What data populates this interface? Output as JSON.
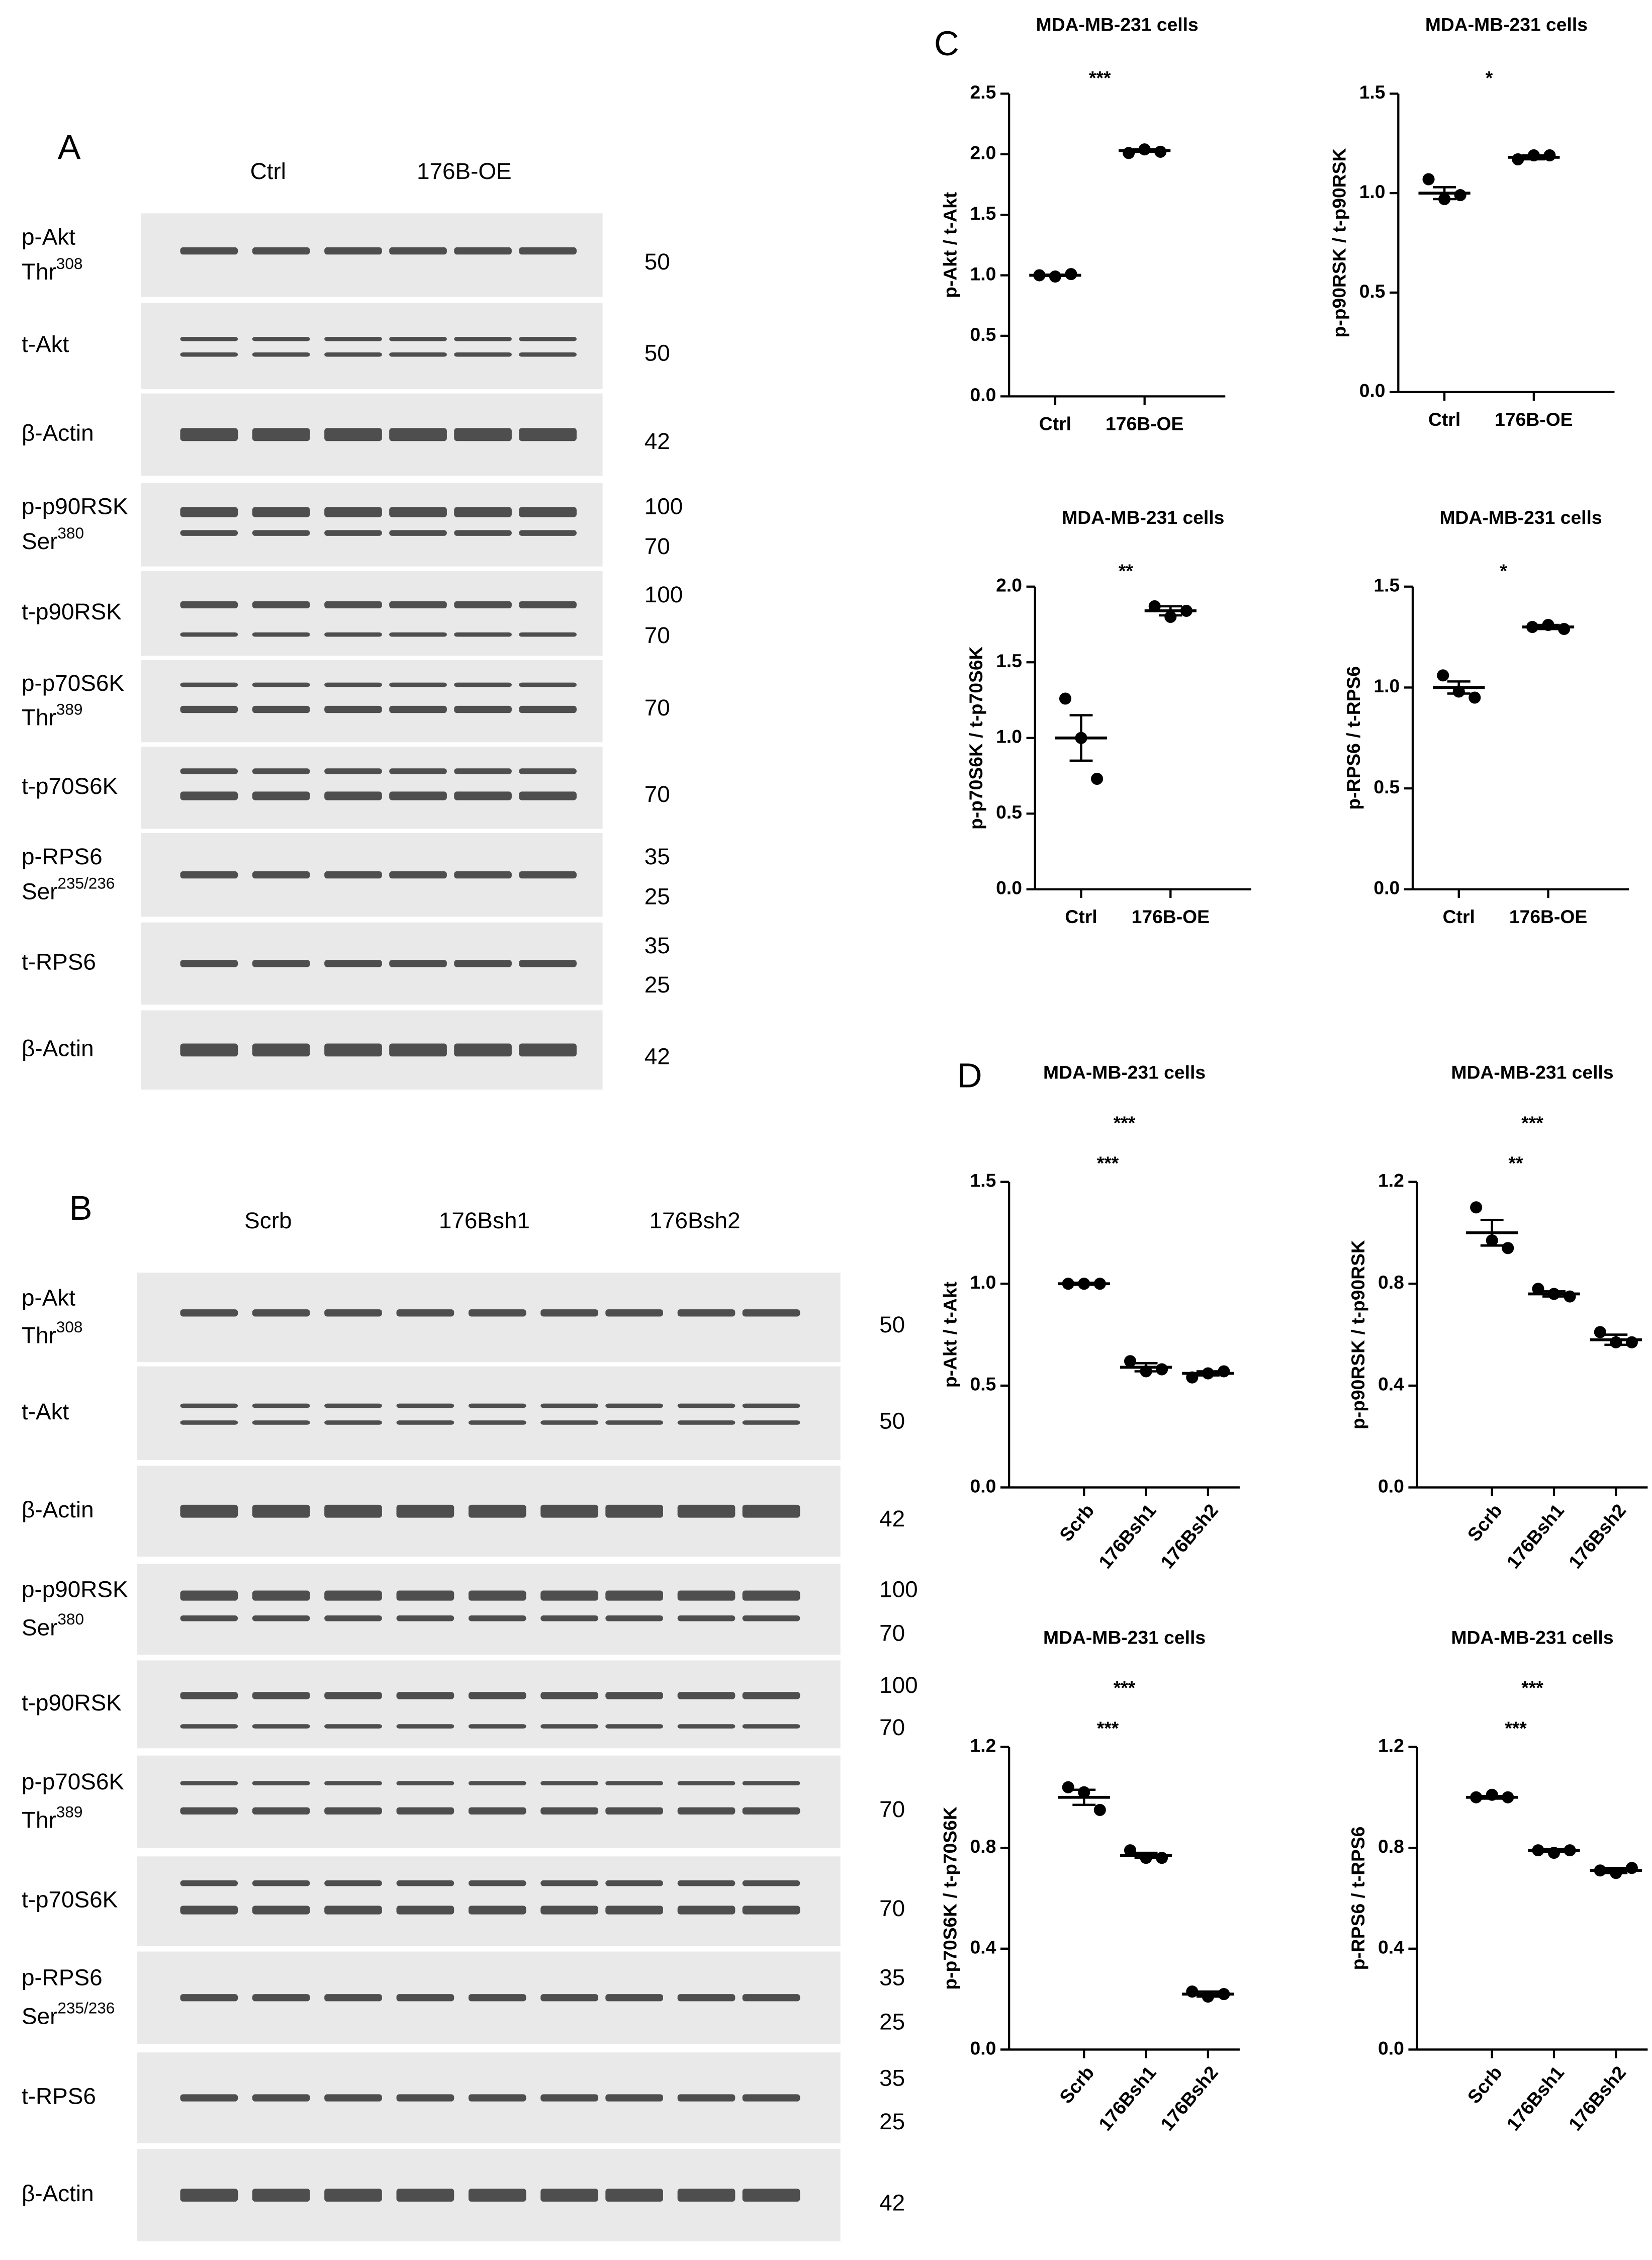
{
  "figure": {
    "panels": [
      "A",
      "B",
      "C",
      "D"
    ]
  },
  "blots": [
    {
      "groups": [
        "Ctrl",
        "176B-OE"
      ],
      "rows": [
        {
          "label": "p-Akt",
          "site": "Thr",
          "site_sup": "308",
          "mw": [
            50
          ]
        },
        {
          "label": "t-Akt",
          "mw": [
            50
          ]
        },
        {
          "label": "β-Actin",
          "mw": [
            42
          ]
        },
        {
          "label": "p-p90RSK",
          "site": "Ser",
          "site_sup": "380",
          "mw": [
            100,
            70
          ]
        },
        {
          "label": "t-p90RSK",
          "mw": [
            100,
            70
          ]
        },
        {
          "label": "p-p70S6K",
          "site": "Thr",
          "site_sup": "389",
          "mw": [
            70
          ]
        },
        {
          "label": "t-p70S6K",
          "mw": [
            70
          ]
        },
        {
          "label": "p-RPS6",
          "site": "Ser",
          "site_sup": "235/236",
          "mw": [
            35,
            25
          ]
        },
        {
          "label": "t-RPS6",
          "mw": [
            35,
            25
          ]
        },
        {
          "label": "β-Actin",
          "mw": [
            42
          ]
        }
      ]
    },
    {
      "groups": [
        "Scrb",
        "176Bsh1",
        "176Bsh2"
      ],
      "rows": [
        {
          "label": "p-Akt",
          "site": "Thr",
          "site_sup": "308",
          "mw": [
            50
          ]
        },
        {
          "label": "t-Akt",
          "mw": [
            50
          ]
        },
        {
          "label": "β-Actin",
          "mw": [
            42
          ]
        },
        {
          "label": "p-p90RSK",
          "site": "Ser",
          "site_sup": "380",
          "mw": [
            100,
            70
          ]
        },
        {
          "label": "t-p90RSK",
          "mw": [
            100,
            70
          ]
        },
        {
          "label": "p-p70S6K",
          "site": "Thr",
          "site_sup": "389",
          "mw": [
            70
          ]
        },
        {
          "label": "t-p70S6K",
          "mw": [
            70
          ]
        },
        {
          "label": "p-RPS6",
          "site": "Ser",
          "site_sup": "235/236",
          "mw": [
            35,
            25
          ]
        },
        {
          "label": "t-RPS6",
          "mw": [
            35,
            25
          ]
        },
        {
          "label": "β-Actin",
          "mw": [
            42
          ]
        }
      ]
    }
  ],
  "chart_data": [
    {
      "type": "dot",
      "title": "MDA-MB-231 cells",
      "ylabel": "p-Akt / t-Akt",
      "categories": [
        "Ctrl",
        "176B-OE"
      ],
      "ylim": [
        0,
        2.5
      ],
      "yticks": [
        {
          "value": 0,
          "label": "0.0"
        },
        0.5,
        {
          "value": 1,
          "label": "1.0"
        },
        1.5,
        {
          "value": 2,
          "label": "2.0"
        },
        2.5
      ],
      "points": [
        [
          1.0,
          0.99,
          1.01
        ],
        [
          2.01,
          2.04,
          2.02
        ]
      ],
      "means": [
        1.0,
        2.03
      ],
      "sems": [
        0.005,
        0.01
      ],
      "annotations": [
        "***"
      ],
      "color": "#000000"
    },
    {
      "type": "dot",
      "title": "MDA-MB-231 cells",
      "ylabel": "p-p90RSK / t-p90RSK",
      "categories": [
        "Ctrl",
        "176B-OE"
      ],
      "ylim": [
        0,
        1.5
      ],
      "yticks": [
        {
          "value": 0,
          "label": "0.0"
        },
        0.5,
        {
          "value": 1,
          "label": "1.0"
        },
        1.5
      ],
      "points": [
        [
          1.07,
          0.97,
          0.99
        ],
        [
          1.17,
          1.19,
          1.19
        ]
      ],
      "means": [
        1.0,
        1.18
      ],
      "sems": [
        0.03,
        0.01
      ],
      "annotations": [
        "*"
      ],
      "color": "#000000"
    },
    {
      "type": "dot",
      "title": "MDA-MB-231 cells",
      "ylabel": "p-p70S6K / t-p70S6K",
      "categories": [
        "Ctrl",
        "176B-OE"
      ],
      "ylim": [
        0,
        2
      ],
      "yticks": [
        {
          "value": 0,
          "label": "0.0"
        },
        0.5,
        {
          "value": 1,
          "label": "1.0"
        },
        1.5,
        {
          "value": 2,
          "label": "2.0"
        }
      ],
      "points": [
        [
          1.26,
          1.0,
          0.73
        ],
        [
          1.87,
          1.8,
          1.84
        ]
      ],
      "means": [
        1.0,
        1.84
      ],
      "sems": [
        0.15,
        0.03
      ],
      "annotations": [
        "**"
      ],
      "color": "#000000"
    },
    {
      "type": "dot",
      "title": "MDA-MB-231 cells",
      "ylabel": "p-RPS6 / t-RPS6",
      "categories": [
        "Ctrl",
        "176B-OE"
      ],
      "ylim": [
        0,
        1.5
      ],
      "yticks": [
        {
          "value": 0,
          "label": "0.0"
        },
        0.5,
        {
          "value": 1,
          "label": "1.0"
        },
        1.5
      ],
      "points": [
        [
          1.06,
          0.98,
          0.95
        ],
        [
          1.3,
          1.31,
          1.29
        ]
      ],
      "means": [
        1.0,
        1.3
      ],
      "sems": [
        0.03,
        0.01
      ],
      "annotations": [
        "*"
      ],
      "color": "#000000"
    },
    {
      "type": "dot",
      "title": "MDA-MB-231 cells",
      "ylabel": "p-Akt / t-Akt",
      "categories": [
        "Scrb",
        "176Bsh1",
        "176Bsh2"
      ],
      "ylim": [
        0,
        1.5
      ],
      "yticks": [
        {
          "value": 0,
          "label": "0.0"
        },
        0.5,
        {
          "value": 1,
          "label": "1.0"
        },
        1.5
      ],
      "points": [
        [
          1.0,
          1.0,
          1.0
        ],
        [
          0.62,
          0.57,
          0.58
        ],
        [
          0.54,
          0.56,
          0.57
        ]
      ],
      "means": [
        1.0,
        0.59,
        0.56
      ],
      "sems": [
        0.005,
        0.02,
        0.01
      ],
      "annotations": [
        "***",
        "***"
      ],
      "color": "#000000"
    },
    {
      "type": "dot",
      "title": "MDA-MB-231 cells",
      "ylabel": "p-p90RSK / t-p90RSK",
      "categories": [
        "Scrb",
        "176Bsh1",
        "176Bsh2"
      ],
      "ylim": [
        0,
        1.2
      ],
      "yticks": [
        {
          "value": 0,
          "label": "0.0"
        },
        0.4,
        0.8,
        1.2
      ],
      "points": [
        [
          1.1,
          0.97,
          0.94
        ],
        [
          0.78,
          0.76,
          0.75
        ],
        [
          0.61,
          0.57,
          0.57
        ]
      ],
      "means": [
        1.0,
        0.76,
        0.58
      ],
      "sems": [
        0.05,
        0.01,
        0.02
      ],
      "annotations": [
        "***",
        "**"
      ],
      "color": "#000000"
    },
    {
      "type": "dot",
      "title": "MDA-MB-231 cells",
      "ylabel": "p-p70S6K / t-p70S6K",
      "categories": [
        "Scrb",
        "176Bsh1",
        "176Bsh2"
      ],
      "ylim": [
        0,
        1.2
      ],
      "yticks": [
        {
          "value": 0,
          "label": "0.0"
        },
        0.4,
        0.8,
        1.2
      ],
      "points": [
        [
          1.04,
          1.02,
          0.95
        ],
        [
          0.79,
          0.76,
          0.76
        ],
        [
          0.23,
          0.21,
          0.22
        ]
      ],
      "means": [
        1.0,
        0.77,
        0.22
      ],
      "sems": [
        0.03,
        0.01,
        0.01
      ],
      "annotations": [
        "***",
        "***"
      ],
      "color": "#000000"
    },
    {
      "type": "dot",
      "title": "MDA-MB-231 cells",
      "ylabel": "p-RPS6 / t-RPS6",
      "categories": [
        "Scrb",
        "176Bsh1",
        "176Bsh2"
      ],
      "ylim": [
        0,
        1.2
      ],
      "yticks": [
        {
          "value": 0,
          "label": "0.0"
        },
        0.4,
        0.8,
        1.2
      ],
      "points": [
        [
          1.0,
          1.01,
          1.0
        ],
        [
          0.79,
          0.78,
          0.79
        ],
        [
          0.71,
          0.7,
          0.72
        ]
      ],
      "means": [
        1.0,
        0.79,
        0.71
      ],
      "sems": [
        0.005,
        0.005,
        0.01
      ],
      "annotations": [
        "***",
        "***"
      ],
      "color": "#000000"
    }
  ]
}
